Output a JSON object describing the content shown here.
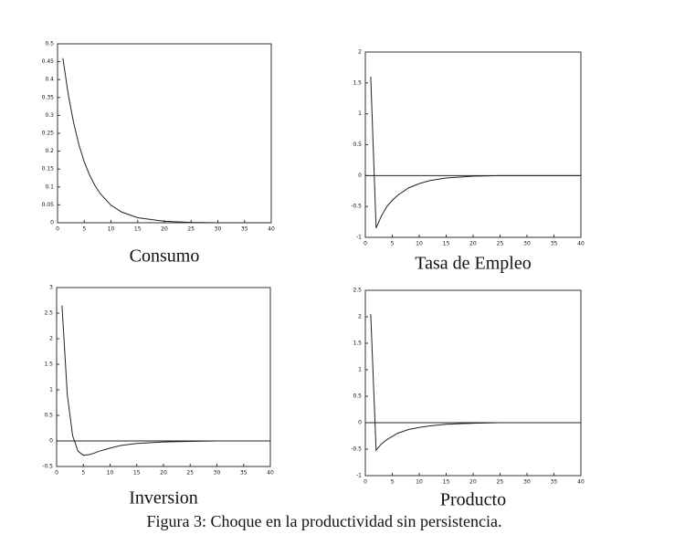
{
  "chart_data": [
    {
      "type": "line",
      "title": "Consumo",
      "x": [
        1,
        2,
        3,
        4,
        5,
        6,
        7,
        8,
        10,
        12,
        15,
        20,
        25,
        30,
        35,
        40
      ],
      "values": [
        0.46,
        0.359,
        0.28,
        0.218,
        0.17,
        0.133,
        0.104,
        0.081,
        0.049,
        0.03,
        0.014,
        0.004,
        0.001,
        0,
        0,
        0
      ],
      "color": "#222222",
      "xlim": [
        0,
        40
      ],
      "xticks": [
        0,
        5,
        10,
        15,
        20,
        25,
        30,
        35,
        40
      ],
      "ylim": [
        0,
        0.5
      ],
      "yticks": [
        0,
        0.05,
        0.1,
        0.15,
        0.2,
        0.25,
        0.3,
        0.35,
        0.4,
        0.45,
        0.5
      ]
    },
    {
      "type": "line",
      "title": "Tasa de Empleo",
      "x": [
        1,
        2,
        3,
        4,
        5,
        6,
        8,
        10,
        12,
        15,
        20,
        25,
        30,
        35,
        40
      ],
      "values": [
        1.6,
        -0.85,
        -0.65,
        -0.5,
        -0.4,
        -0.32,
        -0.2,
        -0.13,
        -0.08,
        -0.04,
        -0.01,
        0,
        0,
        0,
        0
      ],
      "color": "#222222",
      "xlim": [
        0,
        40
      ],
      "xticks": [
        0,
        5,
        10,
        15,
        20,
        25,
        30,
        35,
        40
      ],
      "ylim": [
        -1,
        2
      ],
      "yticks": [
        -1,
        -0.5,
        0,
        0.5,
        1,
        1.5,
        2
      ]
    },
    {
      "type": "line",
      "title": "Inversion",
      "x": [
        1,
        2,
        3,
        4,
        5,
        6,
        7,
        8,
        10,
        12,
        15,
        20,
        25,
        30,
        35,
        40
      ],
      "values": [
        2.65,
        0.9,
        0.1,
        -0.2,
        -0.28,
        -0.27,
        -0.24,
        -0.2,
        -0.14,
        -0.09,
        -0.05,
        -0.02,
        -0.01,
        0,
        0,
        0
      ],
      "color": "#222222",
      "xlim": [
        0,
        40
      ],
      "xticks": [
        0,
        5,
        10,
        15,
        20,
        25,
        30,
        35,
        40
      ],
      "ylim": [
        -0.5,
        3
      ],
      "yticks": [
        -0.5,
        0,
        0.5,
        1,
        1.5,
        2,
        2.5,
        3
      ]
    },
    {
      "type": "line",
      "title": "Producto",
      "x": [
        1,
        2,
        3,
        4,
        5,
        6,
        8,
        10,
        12,
        15,
        20,
        25,
        30,
        35,
        40
      ],
      "values": [
        2.05,
        -0.52,
        -0.4,
        -0.32,
        -0.26,
        -0.2,
        -0.13,
        -0.09,
        -0.06,
        -0.03,
        -0.01,
        0,
        0,
        0,
        0
      ],
      "color": "#222222",
      "xlim": [
        0,
        40
      ],
      "xticks": [
        0,
        5,
        10,
        15,
        20,
        25,
        30,
        35,
        40
      ],
      "ylim": [
        -1,
        2.5
      ],
      "yticks": [
        -1,
        -0.5,
        0,
        0.5,
        1,
        1.5,
        2,
        2.5
      ]
    }
  ],
  "caption": "Figura 3: Choque en la productividad sin persistencia."
}
